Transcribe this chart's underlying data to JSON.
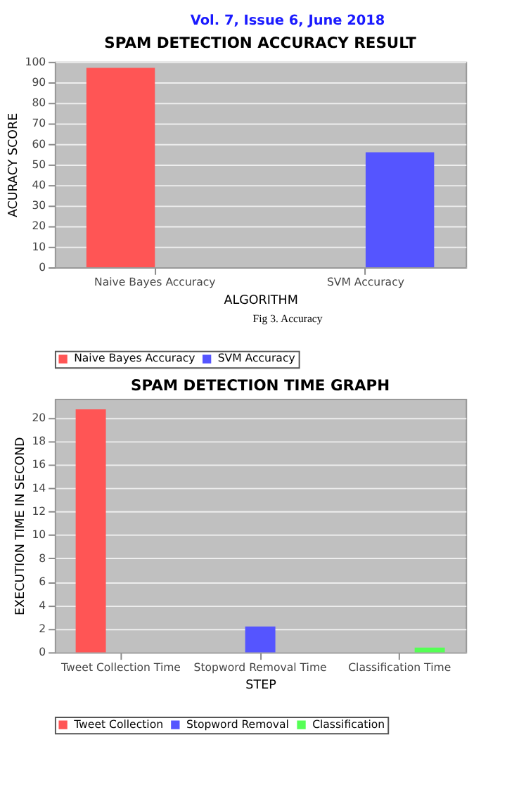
{
  "chart_data": [
    {
      "type": "bar",
      "title": "SPAM DETECTION ACCURACY RESULT",
      "xlabel": "ALGORITHM",
      "ylabel": "ACURACY SCORE",
      "annotations": [
        "Vol. 7, Issue 6, June 2018",
        "Fig 3. Accuracy"
      ],
      "categories": [
        "Naive Bayes Accuracy",
        "SVM Accuracy"
      ],
      "series": [
        {
          "name": "Naive Bayes Accuracy",
          "color": "#ff5555",
          "values": [
            97,
            null
          ]
        },
        {
          "name": "SVM Accuracy",
          "color": "#5555ff",
          "values": [
            null,
            56.0
          ]
        }
      ],
      "ylim": [
        0,
        100
      ],
      "yticks": [
        0,
        10,
        20,
        30,
        40,
        50,
        60,
        70,
        80,
        90,
        100
      ],
      "grid": "y",
      "legend": "bottom"
    },
    {
      "type": "bar",
      "title": "SPAM DETECTION TIME GRAPH",
      "xlabel": "STEP",
      "ylabel": "EXECUTION TIME IN SECOND",
      "categories": [
        "Tweet Collection Time",
        "Stopword Removal Time",
        "Classification Time"
      ],
      "series": [
        {
          "name": "Tweet Collection",
          "color": "#ff5555",
          "values": [
            20.7,
            null,
            null
          ]
        },
        {
          "name": "Stopword Removal",
          "color": "#5555ff",
          "values": [
            null,
            2.2,
            null
          ]
        },
        {
          "name": "Classification",
          "color": "#55ff55",
          "values": [
            null,
            null,
            0.4
          ]
        }
      ],
      "ylim": [
        0,
        21.6
      ],
      "yticks": [
        0,
        2,
        4,
        6,
        8,
        10,
        12,
        14,
        16,
        18,
        20
      ],
      "grid": "y",
      "legend": "bottom"
    }
  ]
}
